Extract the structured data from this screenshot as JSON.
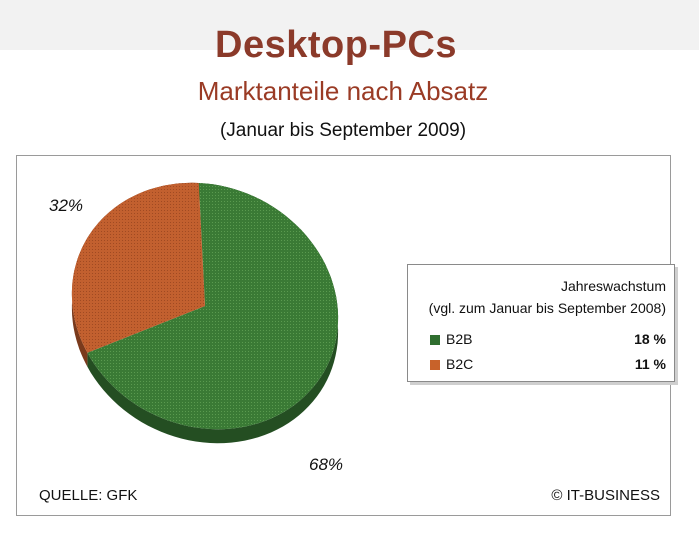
{
  "header": {
    "title": "Desktop-PCs",
    "subtitle": "Marktanteile nach Absatz",
    "period": "(Januar bis September 2009)"
  },
  "footer": {
    "source": "QUELLE: GFK",
    "copyright": "© IT-BUSINESS"
  },
  "legend": {
    "title_line1": "Jahreswachstum",
    "title_line2": "(vgl. zum Januar bis September 2008)",
    "items": [
      {
        "name": "B2B",
        "value": "18 %",
        "color": "#2f6e2f"
      },
      {
        "name": "B2C",
        "value": "11 %",
        "color": "#c8622a"
      }
    ]
  },
  "chart_data": {
    "type": "pie",
    "slices": [
      {
        "name": "B2B",
        "value": 68,
        "label": "68%",
        "color": "#3a7a35",
        "side_color": "#244e22"
      },
      {
        "name": "B2C",
        "value": 32,
        "label": "32%",
        "color": "#c2602f",
        "side_color": "#7a3a1c"
      }
    ],
    "style": "3d-tilted"
  }
}
